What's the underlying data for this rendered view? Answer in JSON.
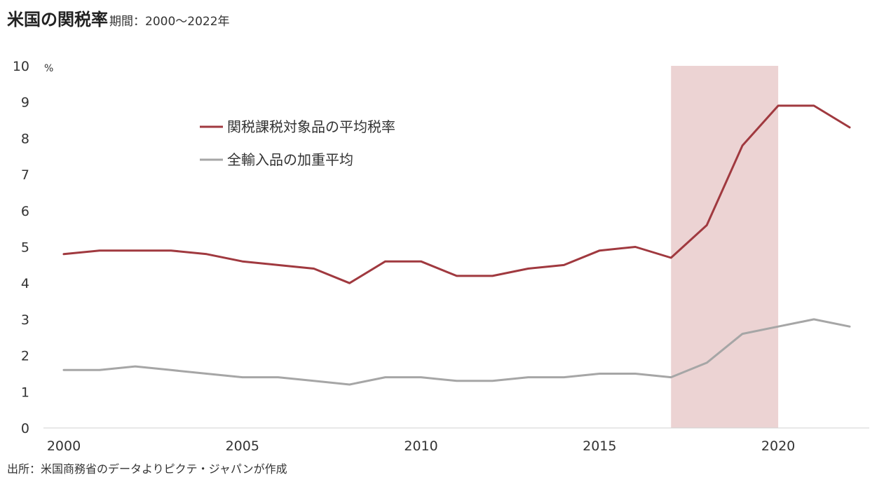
{
  "header": {
    "title": "米国の関税率",
    "subtitle": "期間：2000～2022年"
  },
  "footer": {
    "source": "出所：米国商務省のデータよりピクテ・ジャパンが作成"
  },
  "chart_data": {
    "type": "line",
    "title": "米国の関税率",
    "subtitle": "期間：2000～2022年",
    "y_unit": "%",
    "ylim": [
      0,
      10
    ],
    "xlim": [
      2000,
      2022
    ],
    "y_ticks": [
      "0",
      "1",
      "2",
      "3",
      "4",
      "5",
      "6",
      "7",
      "8",
      "9",
      "10"
    ],
    "x_ticks": [
      "2000",
      "2005",
      "2010",
      "2015",
      "2020"
    ],
    "grid": false,
    "legend_position": "top-center",
    "highlight_band": {
      "from": 2017,
      "to": 2020,
      "color": "#ecd3d3"
    },
    "x": [
      2000,
      2001,
      2002,
      2003,
      2004,
      2005,
      2006,
      2007,
      2008,
      2009,
      2010,
      2011,
      2012,
      2013,
      2014,
      2015,
      2016,
      2017,
      2018,
      2019,
      2020,
      2021,
      2022
    ],
    "series": [
      {
        "name": "関税課税対象品の平均税率",
        "color": "#a0393f",
        "values": [
          4.8,
          4.9,
          4.9,
          4.9,
          4.8,
          4.6,
          4.5,
          4.4,
          4.0,
          4.6,
          4.6,
          4.2,
          4.2,
          4.4,
          4.5,
          4.9,
          5.0,
          4.7,
          5.6,
          7.8,
          8.9,
          8.9,
          8.3
        ]
      },
      {
        "name": "全輸入品の加重平均",
        "color": "#a6a6a6",
        "values": [
          1.6,
          1.6,
          1.7,
          1.6,
          1.5,
          1.4,
          1.4,
          1.3,
          1.2,
          1.4,
          1.4,
          1.3,
          1.3,
          1.4,
          1.4,
          1.5,
          1.5,
          1.4,
          1.8,
          2.6,
          2.8,
          3.0,
          2.8
        ]
      }
    ]
  }
}
